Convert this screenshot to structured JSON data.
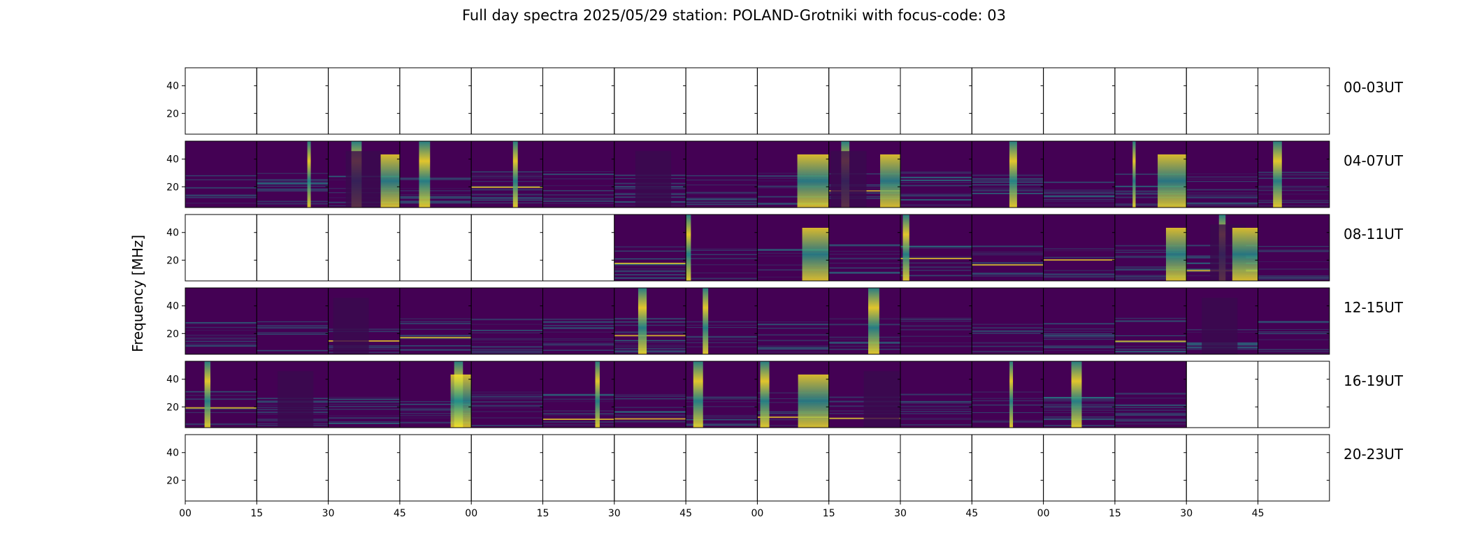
{
  "chart_data": {
    "type": "heatmap",
    "title": "Full day spectra 2025/05/29 station: POLAND-Grotniki with focus-code: 03",
    "ylabel": "Frequency [MHz]",
    "y_ticks": [
      "20",
      "40"
    ],
    "ylim": [
      5,
      53
    ],
    "x_tick_labels": [
      "00",
      "15",
      "30",
      "45",
      "00",
      "15",
      "30",
      "45",
      "00",
      "15",
      "30",
      "45",
      "00",
      "15",
      "30",
      "45"
    ],
    "colormap": "viridis",
    "colors": {
      "low": "#440154",
      "mid": "#21918c",
      "high": "#fde725"
    },
    "rows": [
      {
        "label": "00-03UT",
        "panels": [
          0,
          0,
          0,
          0,
          0,
          0,
          0,
          0,
          0,
          0,
          0,
          0,
          0,
          0,
          0,
          0
        ]
      },
      {
        "label": "04-07UT",
        "panels": [
          1,
          1,
          1,
          1,
          1,
          1,
          1,
          1,
          1,
          1,
          1,
          1,
          1,
          1,
          1,
          1
        ]
      },
      {
        "label": "08-11UT",
        "panels": [
          0,
          0,
          0,
          0,
          0,
          0,
          1,
          1,
          1,
          1,
          1,
          1,
          1,
          1,
          1,
          1
        ]
      },
      {
        "label": "12-15UT",
        "panels": [
          1,
          1,
          1,
          1,
          1,
          1,
          1,
          1,
          1,
          1,
          1,
          1,
          1,
          1,
          1,
          1
        ]
      },
      {
        "label": "16-19UT",
        "panels": [
          1,
          1,
          1,
          1,
          1,
          1,
          1,
          1,
          1,
          1,
          1,
          1,
          1,
          1,
          0,
          0
        ]
      },
      {
        "label": "20-23UT",
        "panels": [
          0,
          0,
          0,
          0,
          0,
          0,
          0,
          0,
          0,
          0,
          0,
          0,
          0,
          0,
          0,
          0
        ]
      }
    ]
  }
}
